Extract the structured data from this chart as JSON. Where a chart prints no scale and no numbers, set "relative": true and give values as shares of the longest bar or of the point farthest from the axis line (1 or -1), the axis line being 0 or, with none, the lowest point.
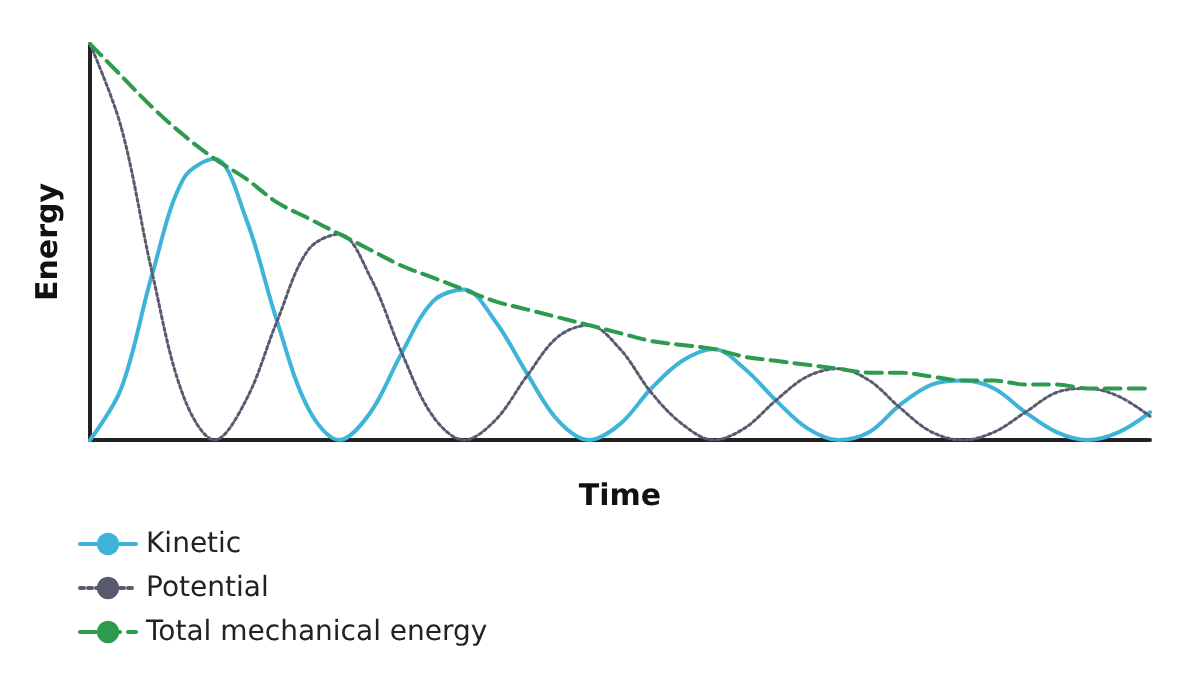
{
  "chart_data": {
    "type": "line",
    "xlabel": "Time",
    "ylabel": "Energy",
    "relative": true,
    "grid": false,
    "legend": "bottom left",
    "marker": "none",
    "categories": [
      null,
      null,
      null,
      null,
      null,
      null,
      null,
      null,
      null,
      null,
      null,
      null,
      null,
      null,
      null,
      null,
      null,
      null,
      null,
      null,
      null,
      null,
      null,
      null,
      null,
      null,
      null,
      null,
      null,
      null,
      null,
      null,
      null,
      null,
      null
    ],
    "series": [
      {
        "name": "Kinetic",
        "color": "#3db4d8",
        "line_style": "solid",
        "values": [
          0,
          0.13,
          0.42,
          0.66,
          0.71,
          0.56,
          0.3,
          0.08,
          0,
          0.07,
          0.22,
          0.35,
          0.38,
          0.3,
          0.17,
          0.05,
          0,
          0.04,
          0.13,
          0.2,
          0.23,
          0.18,
          0.1,
          0.03,
          0,
          0.02,
          0.09,
          0.14,
          0.15,
          0.13,
          0.07,
          0.02,
          0,
          0.02,
          0.07
        ]
      },
      {
        "name": "Potential",
        "color": "#5a5a6e",
        "line_style": "dotted",
        "values": [
          1.0,
          0.79,
          0.42,
          0.11,
          0,
          0.1,
          0.3,
          0.48,
          0.52,
          0.41,
          0.22,
          0.06,
          0,
          0.05,
          0.16,
          0.26,
          0.29,
          0.23,
          0.12,
          0.04,
          0,
          0.03,
          0.1,
          0.16,
          0.18,
          0.15,
          0.08,
          0.02,
          0,
          0.02,
          0.07,
          0.12,
          0.13,
          0.11,
          0.06
        ]
      },
      {
        "name": "Total mechanical energy",
        "color": "#2e9a4e",
        "line_style": "dashed",
        "values": [
          1.0,
          0.92,
          0.84,
          0.77,
          0.71,
          0.66,
          0.6,
          0.56,
          0.52,
          0.48,
          0.44,
          0.41,
          0.38,
          0.35,
          0.33,
          0.31,
          0.29,
          0.27,
          0.25,
          0.24,
          0.23,
          0.21,
          0.2,
          0.19,
          0.18,
          0.17,
          0.17,
          0.16,
          0.15,
          0.15,
          0.14,
          0.14,
          0.13,
          0.13,
          0.13
        ]
      }
    ]
  }
}
